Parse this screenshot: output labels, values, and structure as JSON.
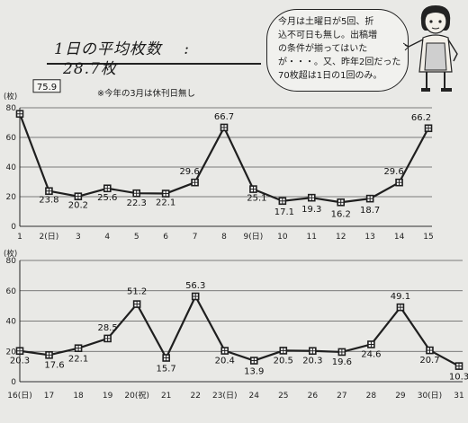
{
  "headline": {
    "label": "1日の平均枚数",
    "sep": ":",
    "value": "28.7枚"
  },
  "bubble": {
    "lines": [
      "今月は土曜日が5回、折",
      "込不可日も無し。出稿増",
      "の条件が揃ってはいた",
      "が・・・。又、昨年2回だった",
      "70枚超は1日の1回のみ。"
    ]
  },
  "note": "※今年の3月は休刊日無し",
  "colors": {
    "line": "#1f1f1f",
    "grid": "#555555",
    "background": "#e9e9e6"
  },
  "chart_data": [
    {
      "type": "line",
      "ylabel": "(枚)",
      "ylim": [
        0,
        80
      ],
      "yticks": [
        0,
        20,
        40,
        60,
        80
      ],
      "grid": true,
      "categories": [
        "1",
        "2(日)",
        "3",
        "4",
        "5",
        "6",
        "7",
        "8",
        "9(日)",
        "10",
        "11",
        "12",
        "13",
        "14",
        "15"
      ],
      "values": [
        75.9,
        23.8,
        20.2,
        25.6,
        22.3,
        22.1,
        29.6,
        66.7,
        25.1,
        17.1,
        19.3,
        16.2,
        18.7,
        29.6,
        66.2
      ],
      "value_labels": [
        "75.9",
        "23.8",
        "20.2",
        "25.6",
        "22.3",
        "22.1",
        "29.6",
        "66.7",
        "25.1",
        "17.1",
        "19.3",
        "16.2",
        "18.7",
        "29.6",
        "66.2"
      ]
    },
    {
      "type": "line",
      "ylabel": "(枚)",
      "ylim": [
        0,
        80
      ],
      "yticks": [
        0,
        20,
        40,
        60,
        80
      ],
      "grid": true,
      "categories": [
        "16(日)",
        "17",
        "18",
        "19",
        "20(祝)",
        "21",
        "22",
        "23(日)",
        "24",
        "25",
        "26",
        "27",
        "28",
        "29",
        "30(日)",
        "31"
      ],
      "values": [
        20.3,
        17.6,
        22.1,
        28.5,
        51.2,
        15.7,
        56.3,
        20.4,
        13.9,
        20.5,
        20.3,
        19.6,
        24.6,
        49.1,
        20.7,
        10.3
      ],
      "value_labels": [
        "20.3",
        "17.6",
        "22.1",
        "28.5",
        "51.2",
        "15.7",
        "56.3",
        "20.4",
        "13.9",
        "20.5",
        "20.3",
        "19.6",
        "24.6",
        "49.1",
        "20.7",
        "10.3"
      ]
    }
  ]
}
